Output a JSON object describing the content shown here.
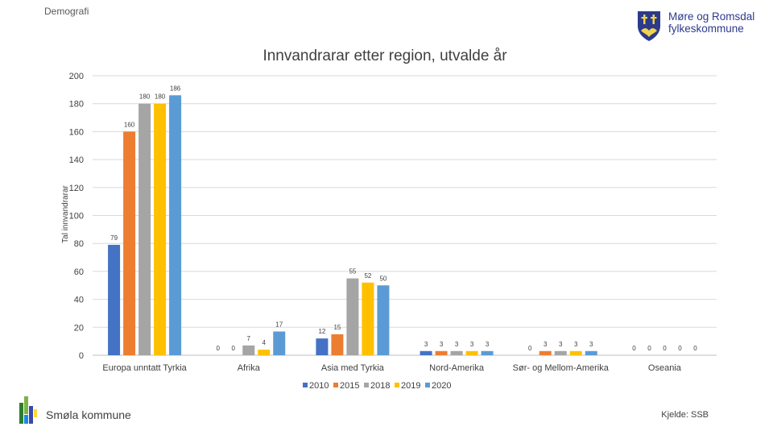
{
  "header": {
    "label": "Demografi"
  },
  "logo": {
    "line1": "Møre og Romsdal",
    "line2": "fylkeskommune",
    "color": "#2b3a8c"
  },
  "footer": {
    "org": "Smøla kommune",
    "source": "Kjelde: SSB"
  },
  "chart_data": {
    "type": "bar",
    "title": "Innvandrarar etter region, utvalde år",
    "xlabel": "",
    "ylabel": "Tal innvandrarar",
    "ylim": [
      0,
      200
    ],
    "yticks": [
      0,
      20,
      40,
      60,
      80,
      100,
      120,
      140,
      160,
      180,
      200
    ],
    "grid": true,
    "legend": "bottom",
    "categories": [
      "Europa unntatt Tyrkia",
      "Afrika",
      "Asia med Tyrkia",
      "Nord-Amerika",
      "Sør- og Mellom-Amerika",
      "Oseania"
    ],
    "series": [
      {
        "name": "2010",
        "color": "#4472c4",
        "values": [
          79,
          0,
          12,
          3,
          0,
          0
        ]
      },
      {
        "name": "2015",
        "color": "#ed7d31",
        "values": [
          160,
          0,
          15,
          3,
          3,
          0
        ]
      },
      {
        "name": "2018",
        "color": "#a5a5a5",
        "values": [
          180,
          7,
          55,
          3,
          3,
          0
        ]
      },
      {
        "name": "2019",
        "color": "#ffc000",
        "values": [
          180,
          4,
          52,
          3,
          3,
          0
        ]
      },
      {
        "name": "2020",
        "color": "#5b9bd5",
        "values": [
          186,
          17,
          50,
          3,
          3,
          0
        ]
      }
    ]
  }
}
